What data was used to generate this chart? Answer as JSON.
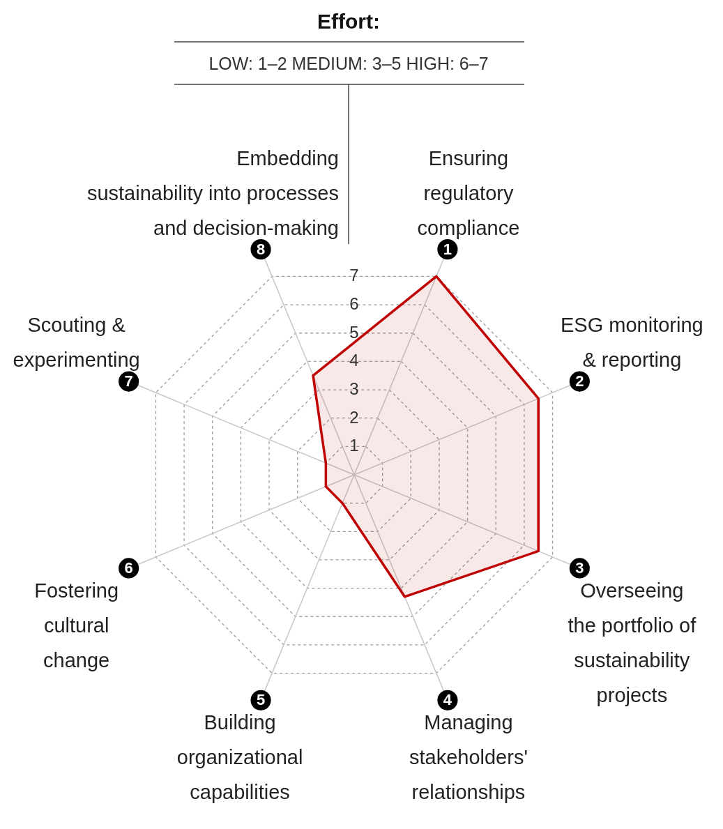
{
  "chart_data": {
    "type": "radar",
    "title": "Effort:",
    "subtitle": "LOW: 1–2    MEDIUM: 3–5    HIGH: 6–7",
    "categories": [
      "Ensuring\nregulatory\ncompliance",
      "ESG monitoring\n& reporting",
      "Overseeing\nthe portfolio of\nsustainability\nprojects",
      "Managing\nstakeholders'\nrelationships",
      "Building\norganizational\ncapabilities",
      "Fostering\ncultural\nchange",
      "Scouting &\nexperimenting",
      "Embedding\nsustainability into processes\nand decision-making"
    ],
    "series": [
      {
        "color": "#c00000",
        "values": [
          7,
          6.5,
          6.5,
          4.3,
          1,
          1,
          1,
          3.5
        ]
      }
    ],
    "ylim": [
      0,
      7
    ],
    "yticks": [
      1,
      2,
      3,
      4,
      5,
      6,
      7
    ],
    "grid": true,
    "annotations": [
      "1",
      "2",
      "3",
      "4",
      "5",
      "6",
      "7",
      "8"
    ]
  }
}
